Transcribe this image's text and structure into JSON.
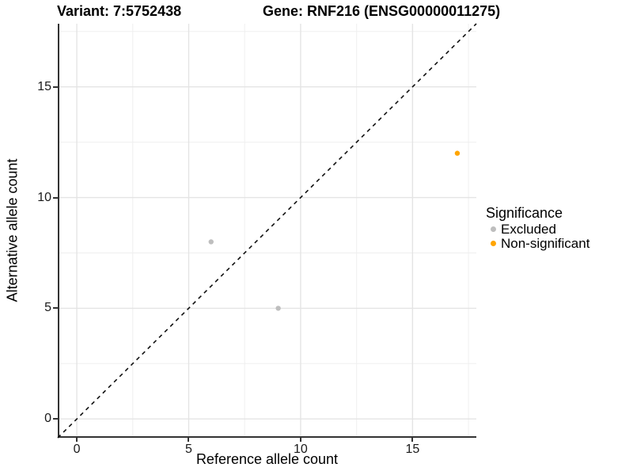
{
  "header": {
    "variant_title": "Variant: 7:5752438",
    "gene_title": "Gene: RNF216 (ENSG00000011275)"
  },
  "axes": {
    "x": {
      "label": "Reference allele count",
      "ticks": [
        0,
        5,
        10,
        15
      ],
      "tick_labels": [
        "0",
        "5",
        "10",
        "15"
      ]
    },
    "y": {
      "label": "Alternative allele count",
      "ticks": [
        0,
        5,
        10,
        15
      ],
      "tick_labels": [
        "0",
        "5",
        "10",
        "15"
      ]
    }
  },
  "legend": {
    "title": "Significance",
    "items": [
      {
        "label": "Excluded",
        "color": "#bebebe"
      },
      {
        "label": "Non-significant",
        "color": "#ffa500"
      }
    ]
  },
  "colors": {
    "grid_major": "#e4e4e4",
    "grid_minor": "#efefef",
    "axis_line": "#333333",
    "diagonal_line": "#111111",
    "excluded_point": "#bebebe",
    "non_significant_point": "#ffa500"
  },
  "chart_data": {
    "type": "scatter",
    "title": "Variant: 7:5752438 / Gene: RNF216 (ENSG00000011275)",
    "xlabel": "Reference allele count",
    "ylabel": "Alternative allele count",
    "xlim": [
      -0.85,
      17.85
    ],
    "ylim": [
      -0.85,
      17.85
    ],
    "grid": {
      "major": [
        0,
        5,
        10,
        15
      ],
      "minor": [
        2.5,
        7.5,
        12.5,
        17.5
      ]
    },
    "legend_position": "right",
    "series": [
      {
        "name": "Excluded",
        "color": "#bebebe",
        "points": [
          {
            "x": 6,
            "y": 8
          },
          {
            "x": 9,
            "y": 5
          }
        ]
      },
      {
        "name": "Non-significant",
        "color": "#ffa500",
        "points": [
          {
            "x": 17,
            "y": 12
          }
        ]
      }
    ],
    "reference_line": {
      "type": "identity y=x",
      "style": "dashed",
      "from": [
        -0.85,
        -0.85
      ],
      "to": [
        17.85,
        17.85
      ]
    },
    "point_radius_px": 3.2
  }
}
